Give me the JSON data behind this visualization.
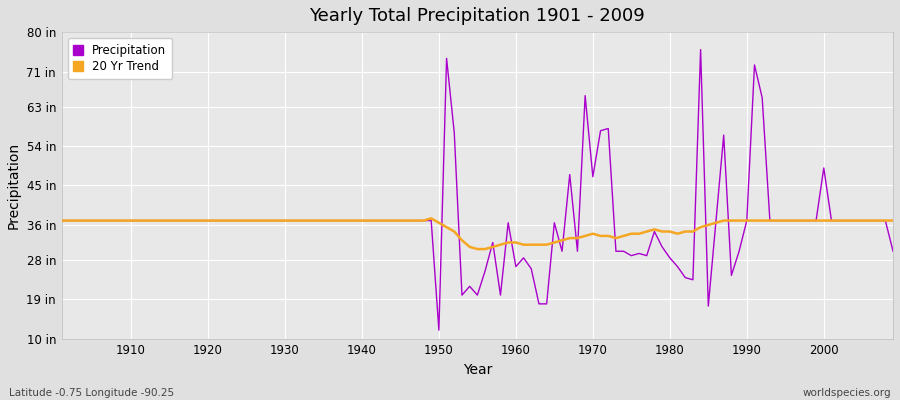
{
  "title": "Yearly Total Precipitation 1901 - 2009",
  "xlabel": "Year",
  "ylabel": "Precipitation",
  "x_label_bottom_left": "Latitude -0.75 Longitude -90.25",
  "x_label_bottom_right": "worldspecies.org",
  "bg_color": "#e0e0e0",
  "plot_bg_color": "#e8e8e8",
  "grid_color": "#ffffff",
  "precip_color": "#aa00cc",
  "trend_color": "#f5a623",
  "ylim": [
    10,
    80
  ],
  "yticks": [
    10,
    19,
    28,
    36,
    45,
    54,
    63,
    71,
    80
  ],
  "ytick_labels": [
    "10 in",
    "19 in",
    "28 in",
    "36 in",
    "45 in",
    "54 in",
    "63 in",
    "71 in",
    "80 in"
  ],
  "xlim": [
    1901,
    2009
  ],
  "xticks": [
    1910,
    1920,
    1930,
    1940,
    1950,
    1960,
    1970,
    1980,
    1990,
    2000
  ],
  "years": [
    1901,
    1902,
    1903,
    1904,
    1905,
    1906,
    1907,
    1908,
    1909,
    1910,
    1911,
    1912,
    1913,
    1914,
    1915,
    1916,
    1917,
    1918,
    1919,
    1920,
    1921,
    1922,
    1923,
    1924,
    1925,
    1926,
    1927,
    1928,
    1929,
    1930,
    1931,
    1932,
    1933,
    1934,
    1935,
    1936,
    1937,
    1938,
    1939,
    1940,
    1941,
    1942,
    1943,
    1944,
    1945,
    1946,
    1947,
    1948,
    1949,
    1950,
    1951,
    1952,
    1953,
    1954,
    1955,
    1956,
    1957,
    1958,
    1959,
    1960,
    1961,
    1962,
    1963,
    1964,
    1965,
    1966,
    1967,
    1968,
    1969,
    1970,
    1971,
    1972,
    1973,
    1974,
    1975,
    1976,
    1977,
    1978,
    1979,
    1980,
    1981,
    1982,
    1983,
    1984,
    1985,
    1986,
    1987,
    1988,
    1989,
    1990,
    1991,
    1992,
    1993,
    1994,
    1995,
    1996,
    1997,
    1998,
    1999,
    2000,
    2001,
    2002,
    2003,
    2004,
    2005,
    2006,
    2007,
    2008,
    2009
  ],
  "precip": [
    37.0,
    37.0,
    37.0,
    37.0,
    37.0,
    37.0,
    37.0,
    37.0,
    37.0,
    37.0,
    37.0,
    37.0,
    37.0,
    37.0,
    37.0,
    37.0,
    37.0,
    37.0,
    37.0,
    37.0,
    37.0,
    37.0,
    37.0,
    37.0,
    37.0,
    37.0,
    37.0,
    37.0,
    37.0,
    37.0,
    37.0,
    37.0,
    37.0,
    37.0,
    37.0,
    37.0,
    37.0,
    37.0,
    37.0,
    37.0,
    37.0,
    37.0,
    37.0,
    37.0,
    37.0,
    37.0,
    37.0,
    37.0,
    37.0,
    12.0,
    74.0,
    57.0,
    20.0,
    22.0,
    20.0,
    25.5,
    32.0,
    20.0,
    36.5,
    26.5,
    28.5,
    26.0,
    18.0,
    18.0,
    36.5,
    30.0,
    47.5,
    30.0,
    65.5,
    47.0,
    57.5,
    58.0,
    30.0,
    30.0,
    29.0,
    29.5,
    29.0,
    34.5,
    31.0,
    28.5,
    26.5,
    24.0,
    23.5,
    76.0,
    17.5,
    37.0,
    56.5,
    24.5,
    30.0,
    37.0,
    72.5,
    65.0,
    37.0,
    37.0,
    37.0,
    37.0,
    37.0,
    37.0,
    37.0,
    49.0,
    37.0,
    37.0,
    37.0,
    37.0,
    37.0,
    37.0,
    37.0,
    37.0,
    30.0
  ],
  "trend": [
    37.0,
    37.0,
    37.0,
    37.0,
    37.0,
    37.0,
    37.0,
    37.0,
    37.0,
    37.0,
    37.0,
    37.0,
    37.0,
    37.0,
    37.0,
    37.0,
    37.0,
    37.0,
    37.0,
    37.0,
    37.0,
    37.0,
    37.0,
    37.0,
    37.0,
    37.0,
    37.0,
    37.0,
    37.0,
    37.0,
    37.0,
    37.0,
    37.0,
    37.0,
    37.0,
    37.0,
    37.0,
    37.0,
    37.0,
    37.0,
    37.0,
    37.0,
    37.0,
    37.0,
    37.0,
    37.0,
    37.0,
    37.0,
    37.5,
    36.5,
    35.5,
    34.5,
    32.5,
    31.0,
    30.5,
    30.5,
    31.0,
    31.5,
    32.0,
    32.0,
    31.5,
    31.5,
    31.5,
    31.5,
    32.0,
    32.5,
    33.0,
    33.0,
    33.5,
    34.0,
    33.5,
    33.5,
    33.0,
    33.5,
    34.0,
    34.0,
    34.5,
    35.0,
    34.5,
    34.5,
    34.0,
    34.5,
    34.5,
    35.5,
    36.0,
    36.5,
    37.0,
    37.0,
    37.0,
    37.0,
    37.0,
    37.0,
    37.0,
    37.0,
    37.0,
    37.0,
    37.0,
    37.0,
    37.0,
    37.0,
    37.0,
    37.0,
    37.0,
    37.0,
    37.0,
    37.0,
    37.0,
    37.0,
    37.0
  ]
}
